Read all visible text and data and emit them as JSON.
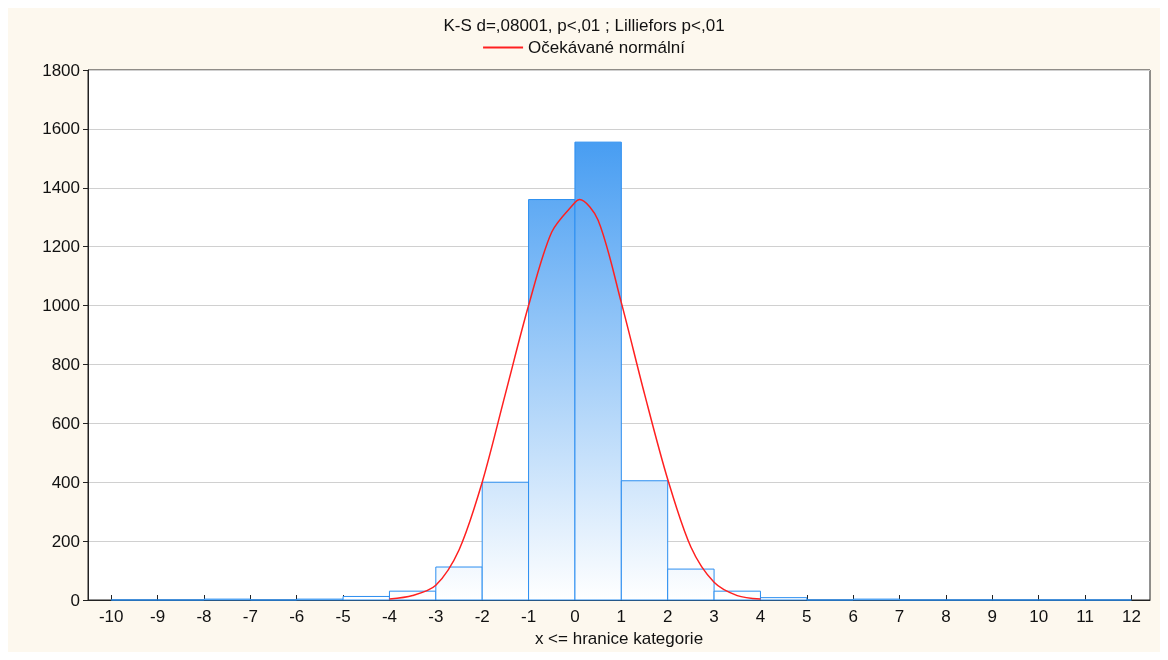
{
  "chart_data": {
    "type": "histogram",
    "title": "K-S d=,08001, p<,01 ; Lilliefors p<,01",
    "xlabel": "x <= hranice kategorie",
    "bins": [
      -10,
      -9,
      -8,
      -7,
      -6,
      -5,
      -4,
      -3,
      -2,
      -1,
      0,
      1,
      2,
      3,
      4,
      5,
      6,
      7,
      8,
      9,
      10,
      11,
      12
    ],
    "values": [
      0,
      0,
      3,
      0,
      3,
      12,
      30,
      112,
      400,
      1360,
      1555,
      405,
      105,
      30,
      8,
      0,
      3,
      0,
      0,
      0,
      0,
      0
    ],
    "color": "#2b8ef0",
    "xlim": [
      -10.5,
      12.4
    ],
    "ylim": [
      0,
      1800
    ],
    "xticks": [
      -10,
      -9,
      -8,
      -7,
      -6,
      -5,
      -4,
      -3,
      -2,
      -1,
      0,
      1,
      2,
      3,
      4,
      5,
      6,
      7,
      8,
      9,
      10,
      11,
      12
    ],
    "yticks": [
      0,
      200,
      400,
      600,
      800,
      1000,
      1200,
      1400,
      1600,
      1800
    ],
    "grid": "y",
    "legend": "top",
    "series": [
      {
        "type": "line",
        "name": "Očekávané normální",
        "color": "#ff2020",
        "x": [
          -4,
          -3.5,
          -3,
          -2.5,
          -2,
          -1.5,
          -1,
          -0.5,
          0,
          0.1,
          0.5,
          1,
          1.5,
          2,
          2.5,
          3,
          3.5,
          4
        ],
        "values": [
          3,
          15,
          50,
          170,
          400,
          700,
          1000,
          1250,
          1350,
          1360,
          1290,
          1010,
          700,
          410,
          180,
          60,
          15,
          3
        ]
      }
    ]
  }
}
